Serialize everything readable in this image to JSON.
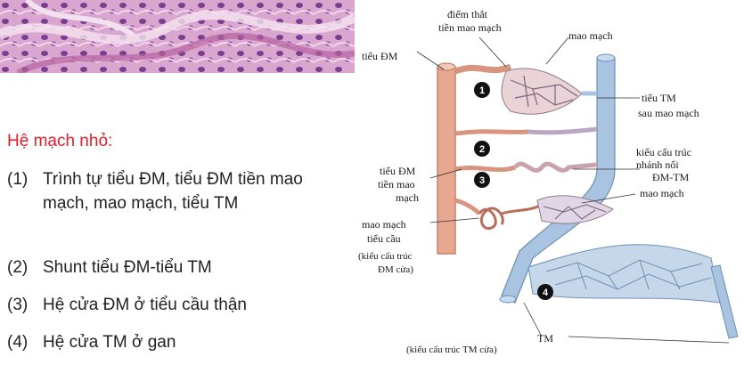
{
  "left_panel": {
    "title": "Hệ mạch nhỏ:",
    "items": [
      {
        "num": "(1)",
        "text": "Trình tự tiểu ĐM, tiểu ĐM tiền mao mạch, mao mạch, tiểu TM"
      },
      {
        "num": "(2)",
        "text": "Shunt tiểu ĐM-tiểu TM"
      },
      {
        "num": "(3)",
        "text": "Hệ cửa ĐM ở tiểu cầu thận"
      },
      {
        "num": "(4)",
        "text": "Hệ cửa TM ở gan"
      }
    ]
  },
  "diagram": {
    "labels": {
      "diem_that_1": "điểm thắt",
      "diem_that_2": "tiền mao mạch",
      "mao_mach_top": "mao mạch",
      "tieu_dm": "tiểu ĐM",
      "tieu_tm_1": "tiểu TM",
      "tieu_tm_2": "sau mao mạch",
      "shunt_1": "kiểu cấu trúc",
      "shunt_2": "nhánh nối",
      "shunt_3": "ĐM-TM",
      "tdm_tien_1": "tiểu ĐM",
      "tdm_tien_2": "tiền mao",
      "tdm_tien_3": "mạch",
      "mao_mach_mid": "mao mạch",
      "mmtc_1": "mao mạch",
      "mmtc_2": "tiểu cầu",
      "mmtc_3": "(kiểu cấu trúc",
      "mmtc_4": "ĐM cửa)",
      "tm": "TM",
      "tm_cua": "(kiểu cấu trúc TM cửa)"
    },
    "markers": [
      "1",
      "2",
      "3",
      "4"
    ],
    "colors": {
      "artery": "#e8a890",
      "vein": "#a9c4e0",
      "title": "#e0202a"
    }
  }
}
